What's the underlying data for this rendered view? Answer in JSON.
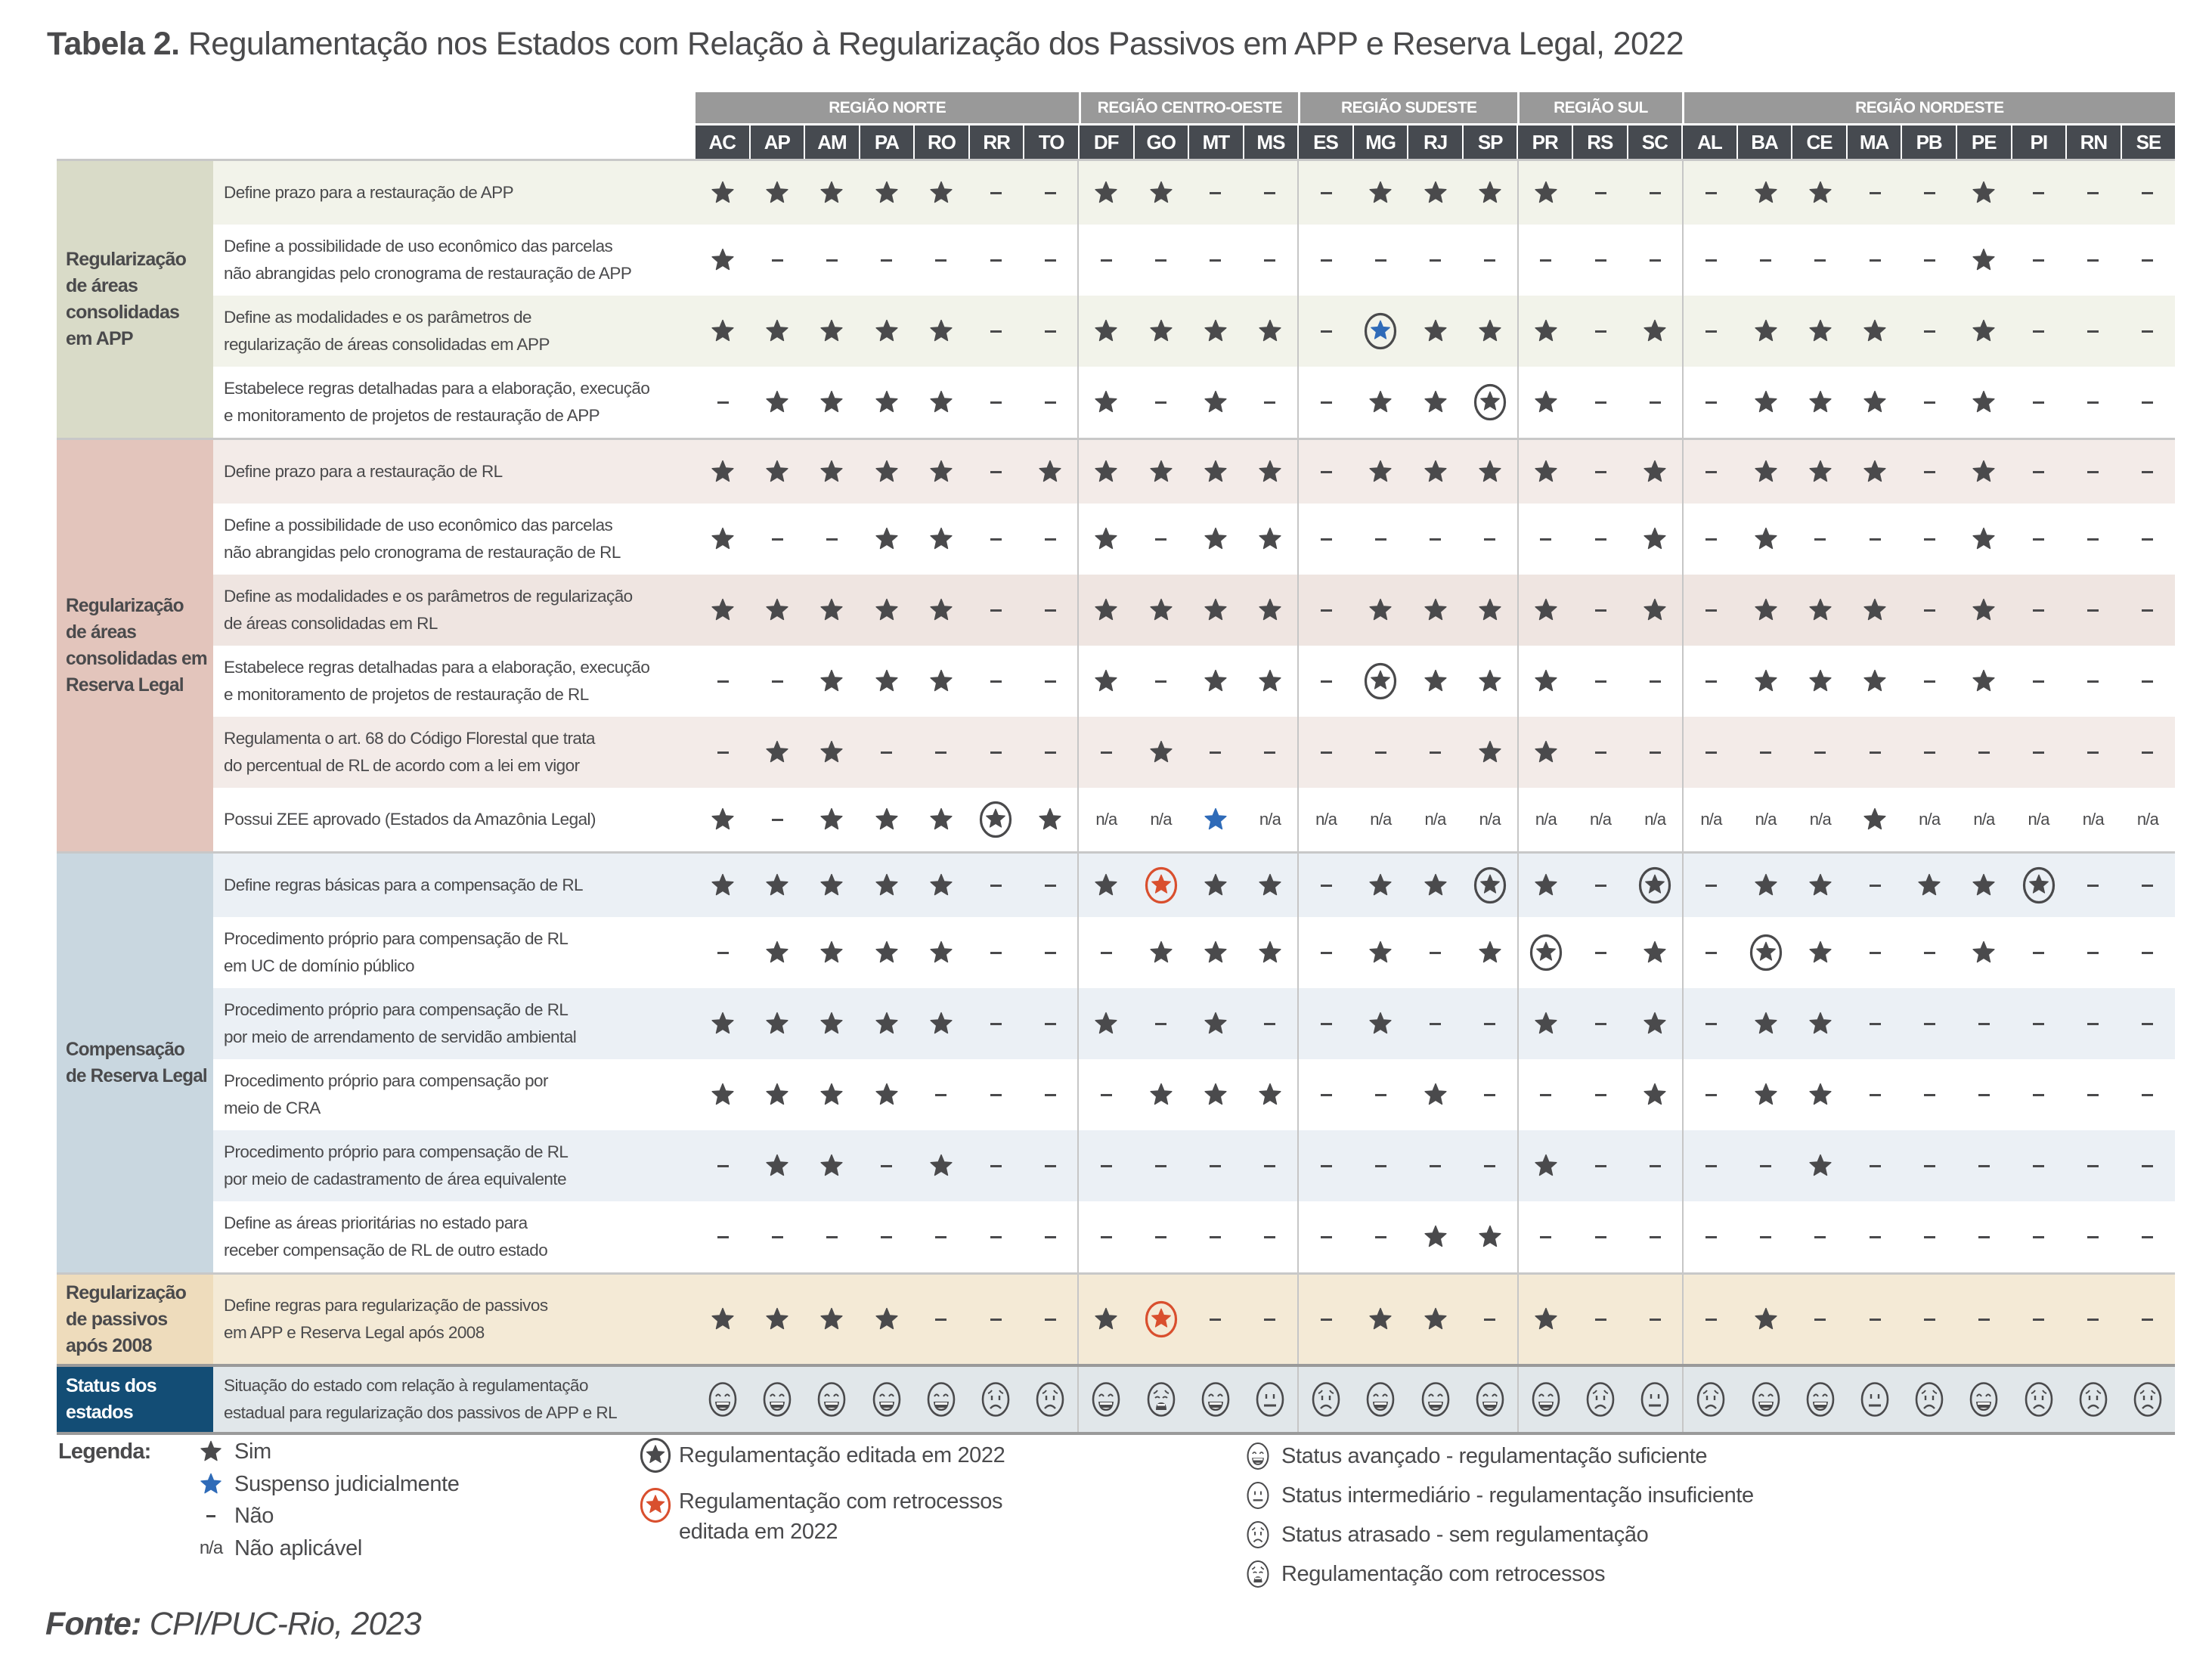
{
  "title": {
    "bold": "Tabela 2.",
    "text": "Regulamentação nos Estados com Relação à Regularização dos Passivos em APP e Reserva Legal, 2022"
  },
  "colors": {
    "star": "#4a4a4c",
    "suspenso": "#2f6bb8",
    "retrocesso": "#d94f2e",
    "region_header": "#999999",
    "state_header": "#464a50",
    "status_label_bg": "#134d75"
  },
  "regions": [
    {
      "name": "REGIÃO NORTE",
      "states": [
        "AC",
        "AP",
        "AM",
        "PA",
        "RO",
        "RR",
        "TO"
      ]
    },
    {
      "name": "REGIÃO CENTRO-OESTE",
      "states": [
        "DF",
        "GO",
        "MT",
        "MS"
      ]
    },
    {
      "name": "REGIÃO SUDESTE",
      "states": [
        "ES",
        "MG",
        "RJ",
        "SP"
      ]
    },
    {
      "name": "REGIÃO SUL",
      "states": [
        "PR",
        "RS",
        "SC"
      ]
    },
    {
      "name": "REGIÃO NORDESTE",
      "states": [
        "AL",
        "BA",
        "CE",
        "MA",
        "PB",
        "PE",
        "PI",
        "RN",
        "SE"
      ]
    }
  ],
  "groups": [
    {
      "label": "Regularização\nde áreas\nconsolidadas\nem APP",
      "cat_color": "#d9dbc8",
      "row_tint": "#f2f3ea",
      "rows": [
        {
          "label": "Define prazo para a restauração de APP",
          "values": [
            "sim",
            "sim",
            "sim",
            "sim",
            "sim",
            "nao",
            "nao",
            "sim",
            "sim",
            "nao",
            "nao",
            "nao",
            "sim",
            "sim",
            "sim",
            "sim",
            "nao",
            "nao",
            "nao",
            "sim",
            "sim",
            "nao",
            "nao",
            "sim",
            "nao",
            "nao",
            "nao"
          ]
        },
        {
          "label": "Define a possibilidade de uso econômico das parcelas\nnão abrangidas pelo cronograma de restauração de APP",
          "values": [
            "sim",
            "nao",
            "nao",
            "nao",
            "nao",
            "nao",
            "nao",
            "nao",
            "nao",
            "nao",
            "nao",
            "nao",
            "nao",
            "nao",
            "nao",
            "nao",
            "nao",
            "nao",
            "nao",
            "nao",
            "nao",
            "nao",
            "nao",
            "sim",
            "nao",
            "nao",
            "nao"
          ]
        },
        {
          "label": "Define as modalidades e os parâmetros de\nregularização de áreas consolidadas em APP",
          "values": [
            "sim",
            "sim",
            "sim",
            "sim",
            "sim",
            "nao",
            "nao",
            "sim",
            "sim",
            "sim",
            "sim",
            "nao",
            "suspenso_editada",
            "sim",
            "sim",
            "sim",
            "nao",
            "sim",
            "nao",
            "sim",
            "sim",
            "sim",
            "nao",
            "sim",
            "nao",
            "nao",
            "nao"
          ]
        },
        {
          "label": "Estabelece regras detalhadas para a elaboração, execução\ne monitoramento de projetos de restauração de APP",
          "values": [
            "nao",
            "sim",
            "sim",
            "sim",
            "sim",
            "nao",
            "nao",
            "sim",
            "nao",
            "sim",
            "nao",
            "nao",
            "sim",
            "sim",
            "editada",
            "sim",
            "nao",
            "nao",
            "nao",
            "sim",
            "sim",
            "sim",
            "nao",
            "sim",
            "nao",
            "nao",
            "nao"
          ]
        }
      ]
    },
    {
      "label": "Regularização\nde áreas\nconsolidadas em\nReserva Legal",
      "cat_color": "#e3c5bc",
      "row_tint": "#f3ebe8",
      "rows": [
        {
          "label": "Define prazo para a restauração de RL",
          "values": [
            "sim",
            "sim",
            "sim",
            "sim",
            "sim",
            "nao",
            "sim",
            "sim",
            "sim",
            "sim",
            "sim",
            "nao",
            "sim",
            "sim",
            "sim",
            "sim",
            "nao",
            "sim",
            "nao",
            "sim",
            "sim",
            "sim",
            "nao",
            "sim",
            "nao",
            "nao",
            "nao"
          ]
        },
        {
          "label": "Define a possibilidade de uso econômico das parcelas\nnão abrangidas pelo cronograma de restauração de RL",
          "values": [
            "sim",
            "nao",
            "nao",
            "sim",
            "sim",
            "nao",
            "nao",
            "sim",
            "nao",
            "sim",
            "sim",
            "nao",
            "nao",
            "nao",
            "nao",
            "nao",
            "nao",
            "sim",
            "nao",
            "sim",
            "nao",
            "nao",
            "nao",
            "sim",
            "nao",
            "nao",
            "nao"
          ]
        },
        {
          "label": "Define as modalidades e os parâmetros de regularização\nde áreas consolidadas em RL",
          "values": [
            "sim",
            "sim",
            "sim",
            "sim",
            "sim",
            "nao",
            "nao",
            "sim",
            "sim",
            "sim",
            "sim",
            "nao",
            "sim",
            "sim",
            "sim",
            "sim",
            "nao",
            "sim",
            "nao",
            "sim",
            "sim",
            "sim",
            "nao",
            "sim",
            "nao",
            "nao",
            "nao"
          ]
        },
        {
          "label": "Estabelece regras detalhadas para a elaboração, execução\ne monitoramento de projetos de restauração de RL",
          "values": [
            "nao",
            "nao",
            "sim",
            "sim",
            "sim",
            "nao",
            "nao",
            "sim",
            "nao",
            "sim",
            "sim",
            "nao",
            "editada",
            "sim",
            "sim",
            "sim",
            "nao",
            "nao",
            "nao",
            "sim",
            "sim",
            "sim",
            "nao",
            "sim",
            "nao",
            "nao",
            "nao"
          ]
        },
        {
          "label": "Regulamenta o art. 68 do Código Florestal que trata\ndo percentual de RL de acordo com a lei em vigor",
          "values": [
            "nao",
            "sim",
            "sim",
            "nao",
            "nao",
            "nao",
            "nao",
            "nao",
            "sim",
            "nao",
            "nao",
            "nao",
            "nao",
            "nao",
            "sim",
            "sim",
            "nao",
            "nao",
            "nao",
            "nao",
            "nao",
            "nao",
            "nao",
            "nao",
            "nao",
            "nao",
            "nao"
          ]
        },
        {
          "label": "Possui ZEE aprovado (Estados da Amazônia Legal)",
          "values": [
            "sim",
            "nao",
            "sim",
            "sim",
            "sim",
            "editada",
            "sim",
            "n/a",
            "n/a",
            "suspenso",
            "n/a",
            "n/a",
            "n/a",
            "n/a",
            "n/a",
            "n/a",
            "n/a",
            "n/a",
            "n/a",
            "n/a",
            "n/a",
            "sim",
            "n/a",
            "n/a",
            "n/a",
            "n/a",
            "n/a"
          ]
        }
      ]
    },
    {
      "label": "Compensação\nde Reserva Legal",
      "cat_color": "#c9d7e0",
      "row_tint": "#ebf0f5",
      "rows": [
        {
          "label": "Define regras básicas para a compensação de RL",
          "values": [
            "sim",
            "sim",
            "sim",
            "sim",
            "sim",
            "nao",
            "nao",
            "sim",
            "retrocesso",
            "sim",
            "sim",
            "nao",
            "sim",
            "sim",
            "editada",
            "sim",
            "nao",
            "editada",
            "nao",
            "sim",
            "sim",
            "nao",
            "sim",
            "sim",
            "editada",
            "nao",
            "nao"
          ]
        },
        {
          "label": "Procedimento próprio para compensação de RL\nem UC de domínio público",
          "values": [
            "nao",
            "sim",
            "sim",
            "sim",
            "sim",
            "nao",
            "nao",
            "nao",
            "sim",
            "sim",
            "sim",
            "nao",
            "sim",
            "nao",
            "sim",
            "editada",
            "nao",
            "sim",
            "nao",
            "editada",
            "sim",
            "nao",
            "nao",
            "sim",
            "nao",
            "nao",
            "nao"
          ]
        },
        {
          "label": "Procedimento próprio para compensação de RL\npor meio de arrendamento de servidão ambiental",
          "values": [
            "sim",
            "sim",
            "sim",
            "sim",
            "sim",
            "nao",
            "nao",
            "sim",
            "nao",
            "sim",
            "nao",
            "nao",
            "sim",
            "nao",
            "nao",
            "sim",
            "nao",
            "sim",
            "nao",
            "sim",
            "sim",
            "nao",
            "nao",
            "nao",
            "nao",
            "nao",
            "nao"
          ]
        },
        {
          "label": "Procedimento próprio para compensação por\nmeio de CRA",
          "values": [
            "sim",
            "sim",
            "sim",
            "sim",
            "nao",
            "nao",
            "nao",
            "nao",
            "sim",
            "sim",
            "sim",
            "nao",
            "nao",
            "sim",
            "nao",
            "nao",
            "nao",
            "sim",
            "nao",
            "sim",
            "sim",
            "nao",
            "nao",
            "nao",
            "nao",
            "nao",
            "nao"
          ]
        },
        {
          "label": "Procedimento próprio para compensação de RL\npor meio de cadastramento de área equivalente",
          "values": [
            "nao",
            "sim",
            "sim",
            "nao",
            "sim",
            "nao",
            "nao",
            "nao",
            "nao",
            "nao",
            "nao",
            "nao",
            "nao",
            "nao",
            "nao",
            "sim",
            "nao",
            "nao",
            "nao",
            "nao",
            "sim",
            "nao",
            "nao",
            "nao",
            "nao",
            "nao",
            "nao"
          ]
        },
        {
          "label": "Define as áreas prioritárias no estado para\nreceber compensação de RL de outro estado",
          "values": [
            "nao",
            "nao",
            "nao",
            "nao",
            "nao",
            "nao",
            "nao",
            "nao",
            "nao",
            "nao",
            "nao",
            "nao",
            "nao",
            "sim",
            "sim",
            "nao",
            "nao",
            "nao",
            "nao",
            "nao",
            "nao",
            "nao",
            "nao",
            "nao",
            "nao",
            "nao",
            "nao"
          ]
        }
      ]
    },
    {
      "label": "Regularização\nde passivos\napós 2008",
      "cat_color": "#eedcbc",
      "row_tint": "#f4ead6",
      "rows": [
        {
          "label": "Define regras para regularização de passivos\nem APP e Reserva Legal após 2008",
          "values": [
            "sim",
            "sim",
            "sim",
            "sim",
            "nao",
            "nao",
            "nao",
            "sim",
            "retrocesso",
            "nao",
            "nao",
            "nao",
            "sim",
            "sim",
            "nao",
            "sim",
            "nao",
            "nao",
            "nao",
            "sim",
            "nao",
            "nao",
            "nao",
            "nao",
            "nao",
            "nao",
            "nao"
          ]
        }
      ]
    }
  ],
  "status": {
    "label": "Status dos\nestados",
    "description": "Situação do estado com relação à regulamentação\nestadual para regularização dos passivos de APP e RL",
    "values": [
      "avancado",
      "avancado",
      "avancado",
      "avancado",
      "avancado",
      "atrasado",
      "atrasado",
      "avancado",
      "retrocesso",
      "avancado",
      "intermediario",
      "atrasado",
      "avancado",
      "avancado",
      "avancado",
      "avancado",
      "atrasado",
      "intermediario",
      "atrasado",
      "avancado",
      "avancado",
      "intermediario",
      "atrasado",
      "avancado",
      "atrasado",
      "atrasado",
      "atrasado"
    ]
  },
  "legend": {
    "title": "Legenda:",
    "symbols": [
      {
        "icon": "sim",
        "label": "Sim"
      },
      {
        "icon": "suspenso",
        "label": "Suspenso judicialmente"
      },
      {
        "icon": "nao",
        "label": "Não"
      },
      {
        "icon": "n/a",
        "symbol": "n/a",
        "label": "Não aplicável"
      }
    ],
    "edits": [
      {
        "icon": "editada",
        "label": "Regulamentação editada em 2022"
      },
      {
        "icon": "retrocesso",
        "label": "Regulamentação com retrocessos\neditada em 2022"
      }
    ],
    "status": [
      {
        "icon": "avancado",
        "label": "Status avançado - regulamentação suficiente"
      },
      {
        "icon": "intermediario",
        "label": "Status intermediário - regulamentação insuficiente"
      },
      {
        "icon": "atrasado",
        "label": "Status atrasado - sem regulamentação"
      },
      {
        "icon": "retrocesso",
        "label": "Regulamentação com retrocessos"
      }
    ]
  },
  "source": {
    "bold": "Fonte:",
    "text": "CPI/PUC-Rio, 2023"
  }
}
